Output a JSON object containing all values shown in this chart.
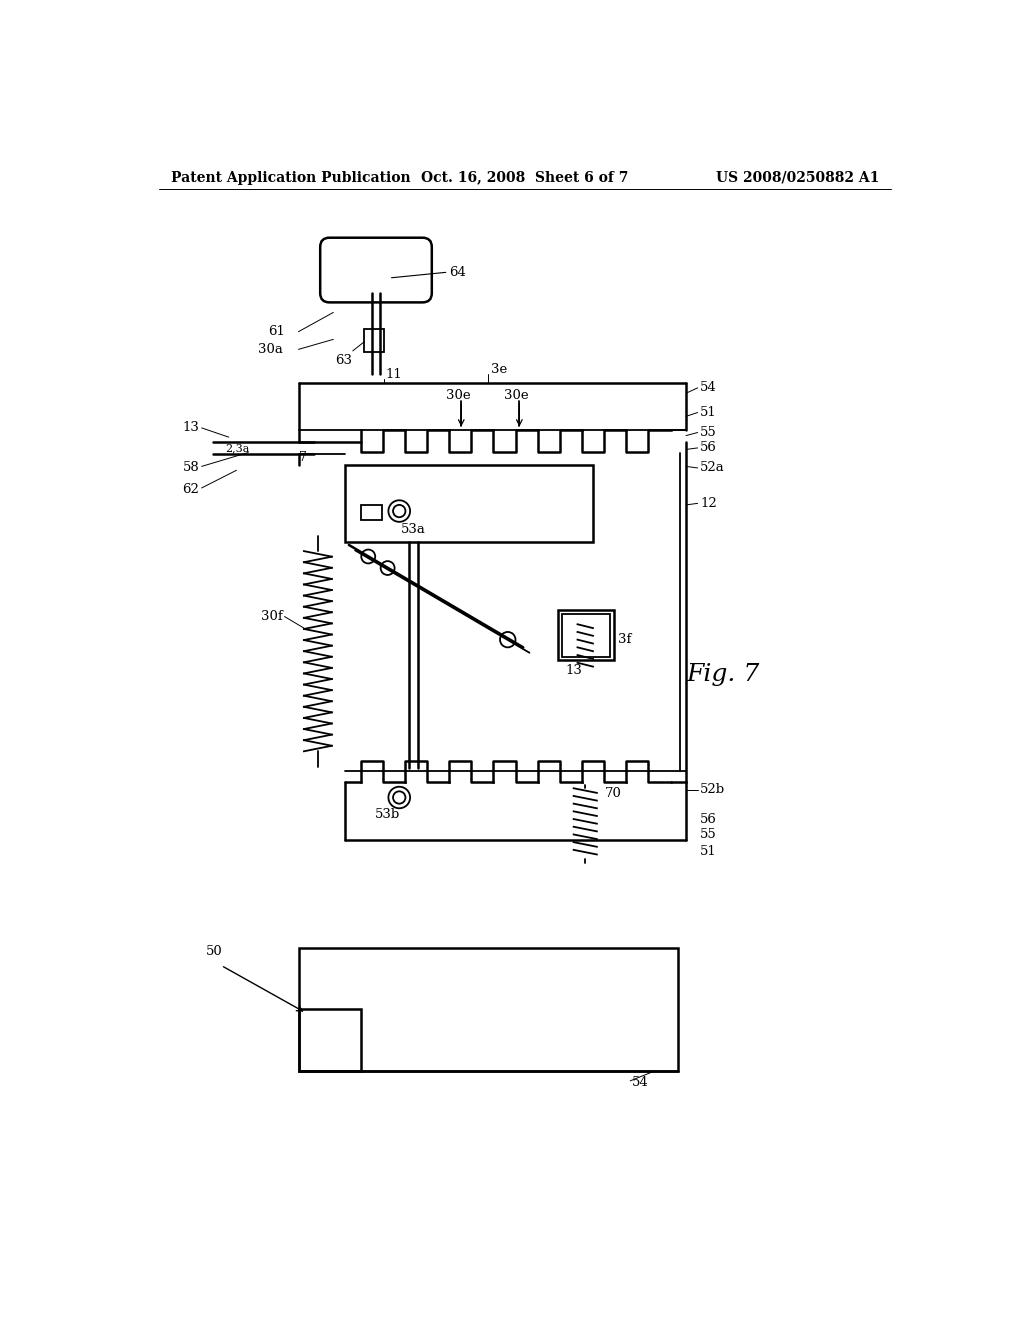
{
  "background_color": "#ffffff",
  "header_left": "Patent Application Publication",
  "header_center": "Oct. 16, 2008  Sheet 6 of 7",
  "header_right": "US 2008/0250882 A1",
  "figure_label": "Fig. 7",
  "diagram_color": "#000000",
  "line_width": 1.3,
  "header_fontsize": 11,
  "label_fontsize": 9.5
}
